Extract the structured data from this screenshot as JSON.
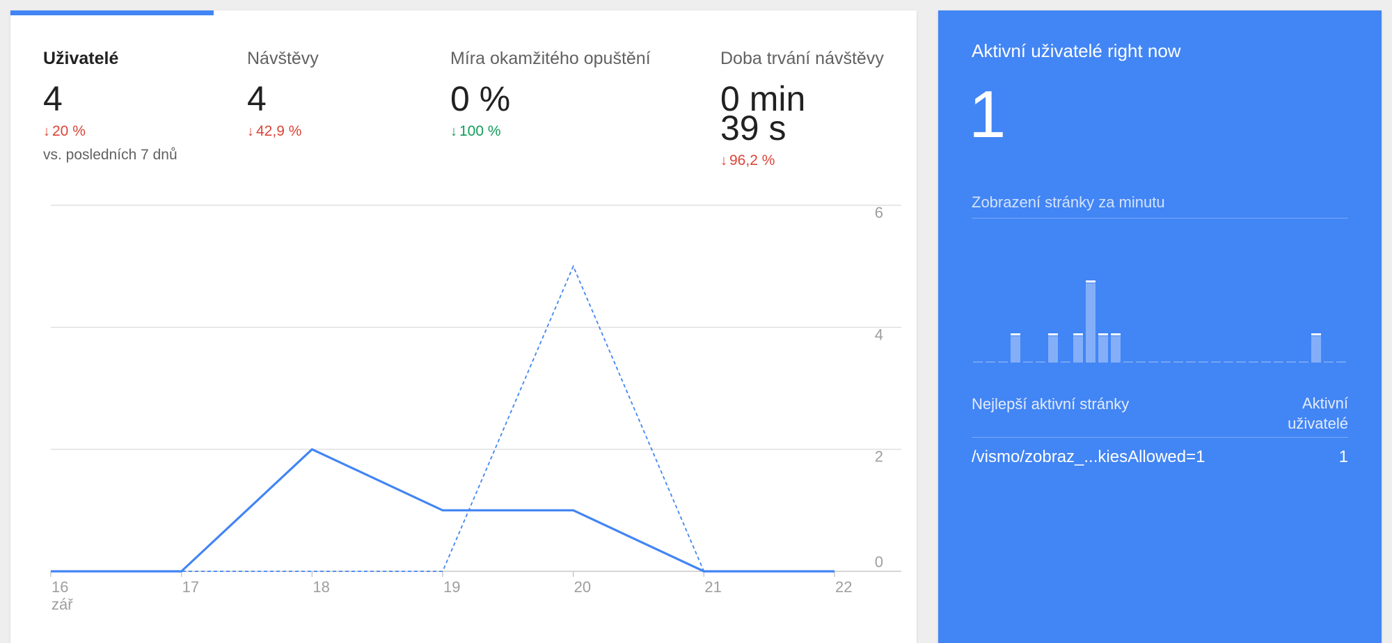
{
  "colors": {
    "accent": "#4285f4",
    "negative": "#db4437",
    "positive": "#0f9d58",
    "series_primary": "#4285f4"
  },
  "metrics": [
    {
      "label": "Uživatelé",
      "value": "4",
      "change": "20 %",
      "change_direction": "down",
      "change_color": "negative",
      "compare": "vs. posledních 7 dnů",
      "active": true
    },
    {
      "label": "Návštěvy",
      "value": "4",
      "change": "42,9 %",
      "change_direction": "down",
      "change_color": "negative"
    },
    {
      "label": "Míra okamžitého opuštění",
      "value": "0 %",
      "change": "100 %",
      "change_direction": "down",
      "change_color": "positive"
    },
    {
      "label": "Doba trvání návštěvy",
      "value_line1": "0 min",
      "value_line2": "39 s",
      "change": "96,2 %",
      "change_direction": "down",
      "change_color": "negative"
    }
  ],
  "chart_data": {
    "type": "line",
    "x": [
      "16",
      "17",
      "18",
      "19",
      "20",
      "21",
      "22"
    ],
    "x_sublabel": "zář",
    "series": [
      {
        "values": [
          0,
          0,
          2,
          1,
          1,
          0,
          0
        ],
        "style": "solid"
      },
      {
        "values": [
          0,
          0,
          0,
          0,
          5,
          0,
          0
        ],
        "style": "dashed"
      }
    ],
    "y_ticks": [
      "6",
      "4",
      "2",
      "0"
    ],
    "ylim": [
      0,
      6
    ],
    "grid": true,
    "y_axis_position": "right"
  },
  "realtime": {
    "title": "Aktivní uživatelé right now",
    "count": "1",
    "pageviews_label": "Zobrazení stránky za minutu",
    "pageviews_per_minute": [
      0,
      0,
      0,
      1,
      0,
      0,
      1,
      0,
      1,
      3,
      1,
      1,
      0,
      0,
      0,
      0,
      0,
      0,
      0,
      0,
      0,
      0,
      0,
      0,
      0,
      0,
      0,
      1,
      0,
      0
    ],
    "top_pages_label": "Nejlepší aktivní stránky",
    "top_pages_users_label": "Aktivní uživatelé",
    "top_pages": [
      {
        "path": "/vismo/zobraz_...kiesAllowed=1",
        "users": "1"
      }
    ]
  }
}
